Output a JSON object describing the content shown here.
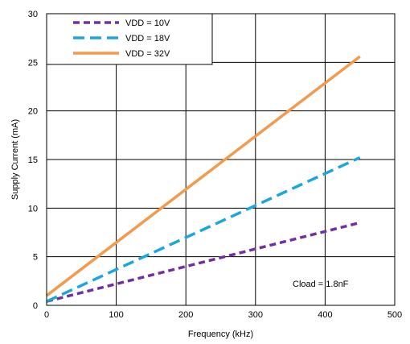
{
  "chart_data": {
    "type": "line",
    "title": "",
    "xlabel": "Frequency (kHz)",
    "ylabel": "Supply Current (mA)",
    "xlim": [
      0,
      500
    ],
    "ylim": [
      0,
      30
    ],
    "xticks": [
      0,
      100,
      200,
      300,
      400,
      500
    ],
    "yticks": [
      0,
      5,
      10,
      15,
      20,
      25,
      30
    ],
    "x_tick_labels": [
      "0",
      "100",
      "200",
      "300",
      "400",
      "500"
    ],
    "y_tick_labels": [
      "0",
      "5",
      "10",
      "15",
      "20",
      "25",
      "30"
    ],
    "grid": true,
    "legend_position": "top-left",
    "annotation": "Cload = 1.8nF",
    "series": [
      {
        "name": "VDD = 10V",
        "color": "#7030a0",
        "dash": "short-dash",
        "x": [
          0,
          450
        ],
        "y": [
          0.4,
          8.5
        ]
      },
      {
        "name": "VDD = 18V",
        "color": "#1aa7df",
        "dash": "long-dash",
        "x": [
          0,
          450
        ],
        "y": [
          0.4,
          15.2
        ]
      },
      {
        "name": "VDD = 32V",
        "color": "#f39a4d",
        "dash": "solid",
        "x": [
          0,
          450
        ],
        "y": [
          1.0,
          25.6
        ]
      }
    ]
  }
}
